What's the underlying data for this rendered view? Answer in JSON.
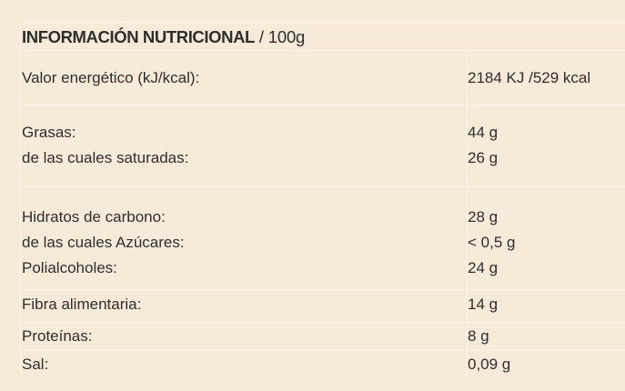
{
  "header": {
    "title": "INFORMACIÓN NUTRICIONAL",
    "unit": " / 100g"
  },
  "rows": [
    {
      "label": "Valor energético (kJ/kcal):",
      "value": "2184 KJ /529 kcal"
    },
    {
      "label": "Grasas:",
      "value": "44 g"
    },
    {
      "label": "de las cuales saturadas:",
      "value": "26 g"
    },
    {
      "label": "Hidratos de carbono:",
      "value": "28 g"
    },
    {
      "label": "de las cuales Azúcares:",
      "value": "< 0,5 g"
    },
    {
      "label": "Polialcoholes:",
      "value": "24 g"
    },
    {
      "label": "Fibra alimentaria:",
      "value": "14 g"
    },
    {
      "label": "Proteínas:",
      "value": "8 g"
    },
    {
      "label": "Sal:",
      "value": "0,09 g"
    }
  ]
}
